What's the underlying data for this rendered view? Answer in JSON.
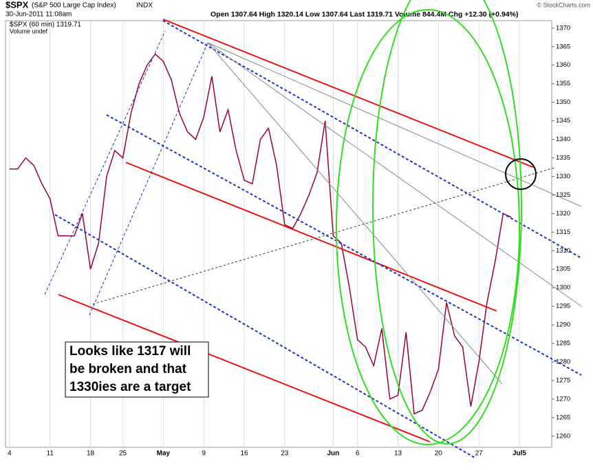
{
  "header": {
    "symbol": "$SPX",
    "name": "(S&P 500 Large Cap Index)",
    "exchange": "INDX",
    "timestamp": "30-Jun-2011 11:08am",
    "quote": "Open 1307.64 High 1320.14 Low 1307.64 Last 1319.71 Volume 844.4M Chg +12.30 (+0.94%)",
    "credit": "© StockCharts.com"
  },
  "annotation": [
    "Looks like 1317 will",
    "be broken and that",
    "1330ies are a target"
  ],
  "chart_data": {
    "type": "line",
    "legend": [
      "$SPX (60 min) 1319.71",
      "Volume undef"
    ],
    "x": [
      0,
      1,
      2,
      3,
      4,
      5,
      6,
      7,
      8,
      9,
      10,
      11,
      12,
      13,
      14,
      15,
      16,
      17,
      18,
      19,
      20,
      21,
      22,
      23,
      24,
      25,
      26,
      27,
      28,
      29,
      30,
      31,
      32,
      33,
      34,
      35,
      36,
      37,
      38,
      39,
      40,
      41,
      42,
      43,
      44,
      45,
      46,
      47,
      48,
      49,
      50,
      51,
      52,
      53,
      54,
      55,
      56,
      57,
      58,
      59,
      60,
      61,
      62
    ],
    "series": [
      {
        "name": "$SPX",
        "color": "#990033",
        "values": [
          1332,
          1332,
          1335,
          1333,
          1328,
          1324,
          1314,
          1314,
          1314,
          1320,
          1305,
          1312,
          1330,
          1337,
          1335,
          1347,
          1355,
          1360,
          1363,
          1361,
          1356,
          1347,
          1342,
          1340,
          1346,
          1357,
          1342,
          1348,
          1337,
          1329,
          1328,
          1340,
          1343,
          1333,
          1317,
          1316,
          1320,
          1325,
          1331,
          1345,
          1314,
          1312,
          1300,
          1286,
          1284,
          1279,
          1289,
          1270,
          1271,
          1288,
          1266,
          1267,
          1272,
          1278,
          1296,
          1287,
          1284,
          1268,
          1280,
          1296,
          1307,
          1320,
          1319
        ]
      }
    ],
    "xlim": [
      -0.5,
      67
    ],
    "xticks": [
      {
        "value": 0,
        "label": "4"
      },
      {
        "value": 5,
        "label": "11"
      },
      {
        "value": 10,
        "label": "18"
      },
      {
        "value": 14,
        "label": "25"
      },
      {
        "value": 19,
        "label": "May"
      },
      {
        "value": 24,
        "label": "9"
      },
      {
        "value": 29,
        "label": "16"
      },
      {
        "value": 34,
        "label": "23"
      },
      {
        "value": 40,
        "label": "Jun"
      },
      {
        "value": 43,
        "label": "6"
      },
      {
        "value": 48,
        "label": "13"
      },
      {
        "value": 53,
        "label": "20"
      },
      {
        "value": 58,
        "label": "27"
      },
      {
        "value": 63,
        "label": "Jul5"
      }
    ],
    "ylim": [
      1257,
      1372
    ],
    "yticks": [
      1260,
      1265,
      1270,
      1275,
      1280,
      1285,
      1290,
      1295,
      1300,
      1305,
      1310,
      1315,
      1320,
      1325,
      1330,
      1335,
      1340,
      1345,
      1350,
      1355,
      1360,
      1365,
      1370
    ],
    "grid": true
  }
}
